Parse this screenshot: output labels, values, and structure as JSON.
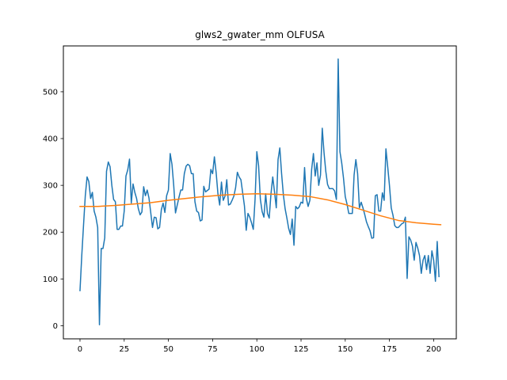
{
  "chart_data": {
    "type": "line",
    "title": "glws2_gwater_mm OLFUSA",
    "xlabel": "",
    "ylabel": "",
    "xlim": [
      -9.4,
      212.8
    ],
    "ylim": [
      -28,
      598
    ],
    "xticks": [
      0,
      25,
      50,
      75,
      100,
      125,
      150,
      175,
      200
    ],
    "yticks": [
      0,
      100,
      200,
      300,
      400,
      500
    ],
    "grid": false,
    "series": [
      {
        "color": "#1f77b4",
        "x": [
          0,
          1,
          2,
          3,
          4,
          5,
          6,
          7,
          8,
          9,
          10,
          11,
          12,
          13,
          14,
          15,
          16,
          17,
          18,
          19,
          20,
          21,
          22,
          23,
          24,
          25,
          26,
          27,
          28,
          29,
          30,
          31,
          32,
          33,
          34,
          35,
          36,
          37,
          38,
          39,
          40,
          41,
          42,
          43,
          44,
          45,
          46,
          47,
          48,
          49,
          50,
          51,
          52,
          53,
          54,
          55,
          56,
          57,
          58,
          59,
          60,
          61,
          62,
          63,
          64,
          65,
          66,
          67,
          68,
          69,
          70,
          71,
          72,
          73,
          74,
          75,
          76,
          77,
          78,
          79,
          80,
          81,
          82,
          83,
          84,
          85,
          86,
          87,
          88,
          89,
          90,
          91,
          92,
          93,
          94,
          95,
          96,
          97,
          98,
          99,
          100,
          101,
          102,
          103,
          104,
          105,
          106,
          107,
          108,
          109,
          110,
          111,
          112,
          113,
          114,
          115,
          116,
          117,
          118,
          119,
          120,
          121,
          122,
          123,
          124,
          125,
          126,
          127,
          128,
          129,
          130,
          131,
          132,
          133,
          134,
          135,
          136,
          137,
          138,
          139,
          140,
          141,
          142,
          143,
          144,
          145,
          146,
          147,
          148,
          149,
          150,
          151,
          152,
          153,
          154,
          155,
          156,
          157,
          158,
          159,
          160,
          161,
          162,
          163,
          164,
          165,
          166,
          167,
          168,
          169,
          170,
          171,
          172,
          173,
          174,
          175,
          176,
          177,
          178,
          179,
          180,
          181,
          182,
          183,
          184,
          185,
          186,
          187,
          188,
          189,
          190,
          191,
          192,
          193,
          194,
          195,
          196,
          197,
          198,
          199,
          200,
          201,
          202,
          203
        ],
        "values": [
          75,
          150,
          215,
          278,
          318,
          308,
          272,
          285,
          245,
          232,
          210,
          2,
          165,
          165,
          188,
          330,
          350,
          340,
          300,
          270,
          265,
          206,
          206,
          213,
          213,
          245,
          320,
          333,
          356,
          262,
          303,
          285,
          272,
          250,
          237,
          243,
          297,
          278,
          290,
          273,
          242,
          210,
          232,
          231,
          207,
          210,
          248,
          262,
          242,
          278,
          290,
          368,
          345,
          300,
          241,
          258,
          275,
          290,
          290,
          325,
          341,
          345,
          342,
          325,
          325,
          265,
          245,
          242,
          224,
          226,
          298,
          286,
          289,
          292,
          334,
          325,
          361,
          327,
          282,
          258,
          307,
          268,
          277,
          312,
          258,
          260,
          268,
          277,
          295,
          328,
          318,
          312,
          284,
          256,
          204,
          240,
          232,
          220,
          206,
          270,
          372,
          342,
          270,
          244,
          232,
          282,
          240,
          230,
          282,
          318,
          286,
          252,
          355,
          380,
          325,
          280,
          250,
          230,
          208,
          195,
          228,
          172,
          255,
          250,
          254,
          264,
          262,
          338,
          272,
          255,
          268,
          334,
          368,
          320,
          348,
          300,
          322,
          422,
          370,
          330,
          302,
          293,
          293,
          293,
          288,
          270,
          570,
          372,
          348,
          316,
          276,
          260,
          240,
          240,
          240,
          322,
          355,
          325,
          252,
          264,
          252,
          238,
          222,
          212,
          203,
          187,
          188,
          278,
          280,
          245,
          245,
          284,
          268,
          378,
          340,
          300,
          252,
          236,
          214,
          210,
          210,
          214,
          218,
          220,
          232,
          101,
          190,
          183,
          170,
          140,
          178,
          166,
          150,
          112,
          140,
          150,
          120,
          150,
          112,
          160,
          140,
          95,
          180,
          105
        ]
      },
      {
        "color": "#ff7f0e",
        "x": [
          0,
          10,
          20,
          30,
          40,
          50,
          60,
          70,
          80,
          90,
          100,
          110,
          120,
          130,
          140,
          150,
          160,
          170,
          180,
          190,
          200,
          204
        ],
        "values": [
          255,
          255,
          257,
          260,
          263,
          268,
          272,
          276,
          279,
          281,
          282,
          281,
          279,
          276,
          269,
          259,
          247,
          235,
          225,
          220,
          217,
          216
        ]
      }
    ]
  }
}
